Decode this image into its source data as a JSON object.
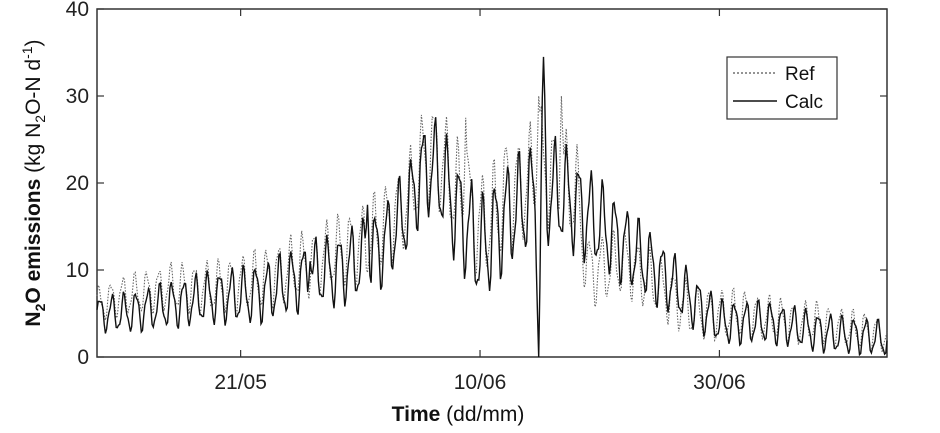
{
  "chart_data": {
    "type": "line",
    "xlabel": "Time",
    "xlabel_unit": "(dd/mm)",
    "ylabel_prefix": "N",
    "ylabel_sub": "2",
    "ylabel_main": "O emissions",
    "ylabel_unit_pre": " (kg N",
    "ylabel_unit_sub": "2",
    "ylabel_unit_mid": "O-N d",
    "ylabel_unit_sup": "-1",
    "ylabel_unit_post": ")",
    "ylim": [
      0,
      40
    ],
    "yticks": [
      0,
      10,
      20,
      30,
      40
    ],
    "xlim_days": [
      0,
      66
    ],
    "xticks": [
      {
        "day": 12,
        "label": "21/05"
      },
      {
        "day": 32,
        "label": "10/06"
      },
      {
        "day": 52,
        "label": "30/06"
      }
    ],
    "grid": false,
    "legend_position": "top-right",
    "series": [
      {
        "name": "Ref",
        "style": "dotted",
        "points": [
          [
            0,
            6
          ],
          [
            2,
            7
          ],
          [
            4,
            7.5
          ],
          [
            6,
            8
          ],
          [
            8,
            8
          ],
          [
            10,
            8
          ],
          [
            12,
            8.5
          ],
          [
            14,
            9
          ],
          [
            16,
            10
          ],
          [
            18,
            11
          ],
          [
            20,
            12
          ],
          [
            22,
            13
          ],
          [
            24,
            15
          ],
          [
            26,
            18
          ],
          [
            27,
            22
          ],
          [
            28,
            24
          ],
          [
            29,
            22
          ],
          [
            30,
            19
          ],
          [
            31,
            17
          ],
          [
            32,
            15
          ],
          [
            33,
            16
          ],
          [
            34,
            18
          ],
          [
            35,
            19
          ],
          [
            36,
            20
          ],
          [
            37,
            22
          ],
          [
            38,
            21
          ],
          [
            39,
            20
          ],
          [
            40,
            19
          ],
          [
            41,
            10
          ],
          [
            42,
            10
          ],
          [
            44,
            11
          ],
          [
            46,
            9
          ],
          [
            48,
            7
          ],
          [
            50,
            5
          ],
          [
            52,
            5
          ],
          [
            54,
            5
          ],
          [
            56,
            4.5
          ],
          [
            58,
            4
          ],
          [
            60,
            4
          ],
          [
            62,
            3.5
          ],
          [
            64,
            3
          ],
          [
            66,
            2.5
          ]
        ],
        "amplitude": [
          [
            0,
            2
          ],
          [
            10,
            3
          ],
          [
            20,
            4
          ],
          [
            26,
            5
          ],
          [
            30,
            6
          ],
          [
            40,
            6
          ],
          [
            41,
            4
          ],
          [
            50,
            3
          ],
          [
            56,
            2.5
          ],
          [
            66,
            2
          ]
        ],
        "spikes": [
          [
            28.2,
            27.5
          ],
          [
            30.8,
            27.5
          ],
          [
            34.2,
            24
          ],
          [
            36.9,
            30
          ],
          [
            38.8,
            30
          ]
        ]
      },
      {
        "name": "Calc",
        "style": "solid",
        "points": [
          [
            0,
            5
          ],
          [
            2,
            5
          ],
          [
            4,
            5.5
          ],
          [
            6,
            6
          ],
          [
            8,
            6.5
          ],
          [
            10,
            7
          ],
          [
            12,
            7
          ],
          [
            14,
            7.5
          ],
          [
            16,
            8.5
          ],
          [
            18,
            9.5
          ],
          [
            20,
            10
          ],
          [
            22,
            11
          ],
          [
            24,
            13
          ],
          [
            26,
            17
          ],
          [
            27,
            21
          ],
          [
            28,
            22
          ],
          [
            29,
            20
          ],
          [
            30,
            17
          ],
          [
            31,
            15
          ],
          [
            32,
            12
          ],
          [
            33,
            14
          ],
          [
            34,
            16
          ],
          [
            35,
            17
          ],
          [
            36,
            18
          ],
          [
            37,
            19
          ],
          [
            38,
            19
          ],
          [
            39,
            18.5
          ],
          [
            39.5,
            18
          ],
          [
            52,
            4
          ],
          [
            54,
            4
          ],
          [
            56,
            4
          ],
          [
            58,
            3.5
          ],
          [
            60,
            3
          ],
          [
            62,
            2.5
          ],
          [
            64,
            2.5
          ],
          [
            66,
            2
          ]
        ],
        "amplitude": [
          [
            0,
            2
          ],
          [
            10,
            3
          ],
          [
            20,
            4
          ],
          [
            26,
            5
          ],
          [
            30,
            6
          ],
          [
            38,
            6
          ],
          [
            52,
            2.5
          ],
          [
            66,
            2
          ]
        ],
        "spikes": [
          [
            37.3,
            34.5
          ],
          [
            36.9,
            0
          ],
          [
            22.6,
            17.5
          ],
          [
            17.8,
            11
          ]
        ]
      }
    ]
  }
}
